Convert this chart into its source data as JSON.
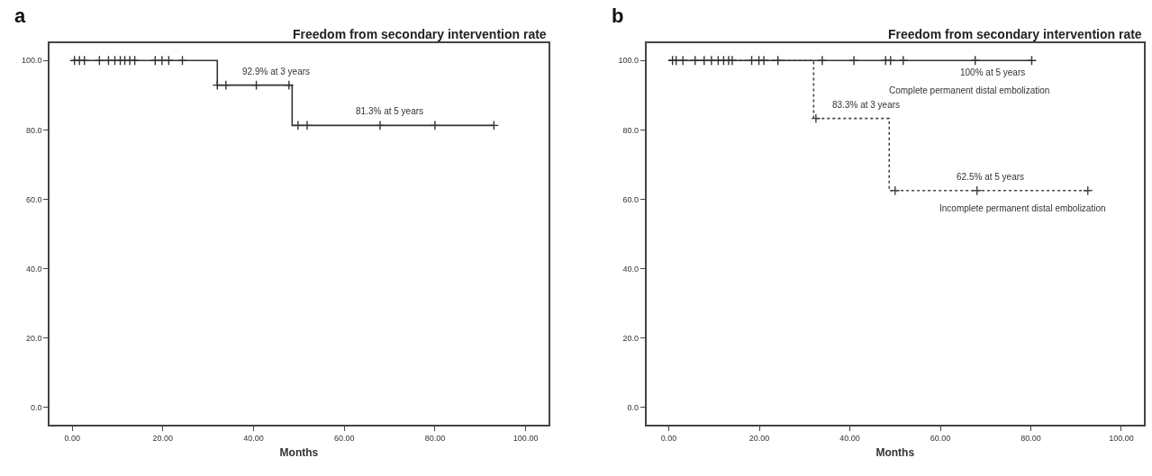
{
  "chart_data": [
    {
      "type": "step",
      "title": "Freedom from secondary intervention rate",
      "xlabel": "Months",
      "xlim": [
        -5,
        105
      ],
      "ylim": [
        -5,
        105
      ],
      "xticks": [
        {
          "value": 0,
          "label": "0.00"
        },
        {
          "value": 20,
          "label": "20.00"
        },
        {
          "value": 40,
          "label": "40.00"
        },
        {
          "value": 60,
          "label": "60.00"
        },
        {
          "value": 80,
          "label": "80.00"
        },
        {
          "value": 100,
          "label": "100.00"
        }
      ],
      "yticks": [
        {
          "value": 0,
          "label": "0.0"
        },
        {
          "value": 20,
          "label": "20.0"
        },
        {
          "value": 40,
          "label": "40.0"
        },
        {
          "value": 60,
          "label": "60.0"
        },
        {
          "value": 80,
          "label": "80.0"
        },
        {
          "value": 100,
          "label": "100.0"
        }
      ],
      "grid": false,
      "legend": false,
      "annotations": [
        "a",
        {
          "text": "92.9% at 3 years",
          "x": 45,
          "y": 92.9
        },
        {
          "text": "81.3% at 5 years",
          "x": 70,
          "y": 81.3
        }
      ],
      "series": [
        {
          "color": "#333333",
          "line_style": "solid",
          "x": [
            0,
            32,
            48.5,
            93
          ],
          "values": [
            100,
            92.9,
            81.3,
            81.3
          ]
        },
        {
          "type": "scatter",
          "marker": "cross",
          "color": "#333333",
          "x": [
            0.5,
            1.6,
            2.7,
            6.0,
            8.0,
            9.4,
            10.6,
            11.6,
            12.7,
            13.8,
            18.3,
            19.8,
            21.3,
            24.3,
            32,
            33.9,
            40.6,
            47.8,
            49.8,
            51.8,
            67.9,
            80,
            93
          ],
          "values": [
            100,
            100,
            100,
            100,
            100,
            100,
            100,
            100,
            100,
            100,
            100,
            100,
            100,
            100,
            92.9,
            92.9,
            92.9,
            92.9,
            81.3,
            81.3,
            81.3,
            81.3,
            81.3
          ]
        }
      ]
    },
    {
      "type": "step",
      "title": "Freedom from secondary intervention rate",
      "xlabel": "Months",
      "xlim": [
        -5,
        105
      ],
      "ylim": [
        -5,
        105
      ],
      "xticks": [
        {
          "value": 0,
          "label": "0.00"
        },
        {
          "value": 20,
          "label": "20.00"
        },
        {
          "value": 40,
          "label": "40.00"
        },
        {
          "value": 60,
          "label": "60.00"
        },
        {
          "value": 80,
          "label": "80.00"
        },
        {
          "value": 100,
          "label": "100.00"
        }
      ],
      "yticks": [
        {
          "value": 0,
          "label": "0.0"
        },
        {
          "value": 20,
          "label": "20.0"
        },
        {
          "value": 40,
          "label": "40.0"
        },
        {
          "value": 60,
          "label": "60.0"
        },
        {
          "value": 80,
          "label": "80.0"
        },
        {
          "value": 100,
          "label": "100.0"
        }
      ],
      "grid": false,
      "legend": false,
      "annotations": [
        "b",
        {
          "text": "100% at 5 years",
          "x": 71.6,
          "y": 100
        },
        {
          "text": "83.3% at 3 years",
          "x": 43.6,
          "y": 83.3
        },
        {
          "text": "62.5% at 5 years",
          "x": 71,
          "y": 62.5
        }
      ],
      "series": [
        {
          "name": "Incomplete permanent distal embolization",
          "color": "#444444",
          "line_style": "dotted",
          "x": [
            0,
            32,
            48.7,
            92.6
          ],
          "values": [
            100,
            83.3,
            62.5,
            62.5
          ]
        },
        {
          "type": "scatter",
          "marker": "cross",
          "color": "#444444",
          "x": [
            32.5,
            50,
            68.1,
            92.6
          ],
          "values": [
            83.3,
            62.5,
            62.5,
            62.5
          ]
        },
        {
          "name": "Complete permanent distal embolization",
          "color": "#333333",
          "line_style": "solid",
          "x": [
            0,
            80.2
          ],
          "values": [
            100,
            100
          ]
        },
        {
          "type": "scatter",
          "marker": "cross",
          "color": "#333333",
          "x": [
            0.8,
            1.6,
            3.1,
            5.8,
            7.8,
            9.4,
            10.9,
            12.1,
            13.2,
            14.0,
            18.3,
            19.9,
            21.0,
            24.1,
            33.9,
            40.9,
            47.9,
            49.0,
            51.8,
            67.7,
            80.2
          ],
          "values": [
            100,
            100,
            100,
            100,
            100,
            100,
            100,
            100,
            100,
            100,
            100,
            100,
            100,
            100,
            100,
            100,
            100,
            100,
            100,
            100,
            100
          ]
        }
      ]
    }
  ]
}
